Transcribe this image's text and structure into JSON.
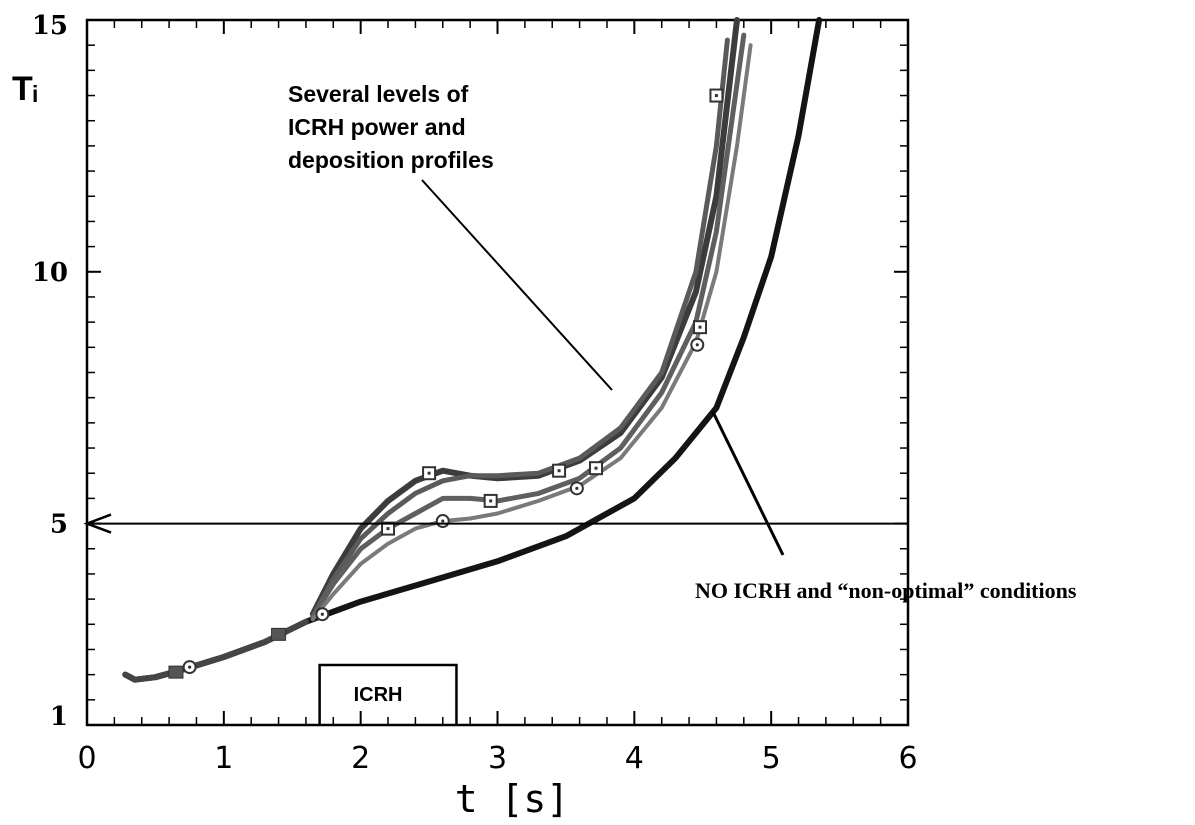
{
  "chart_data": {
    "type": "line",
    "xlabel": "t [s]",
    "ylabel": "Tᵢ",
    "xlim": [
      0,
      6
    ],
    "ylim": [
      1,
      15
    ],
    "x_ticks": [
      "0",
      "1",
      "2",
      "3",
      "4",
      "5",
      "6"
    ],
    "y_ticks": [
      {
        "label": "15",
        "value": 15
      },
      {
        "label": "10",
        "value": 10
      },
      {
        "label": "5",
        "value": 5
      },
      {
        "label": "1",
        "value": 1
      }
    ],
    "grid": false,
    "series": [
      {
        "color": "#141414",
        "width": 6,
        "marker": "none",
        "points": [
          [
            0.28,
            2.0
          ],
          [
            0.35,
            1.9
          ],
          [
            0.5,
            1.95
          ],
          [
            0.7,
            2.1
          ],
          [
            1.0,
            2.35
          ],
          [
            1.3,
            2.65
          ],
          [
            1.6,
            3.05
          ],
          [
            1.75,
            3.2
          ],
          [
            2.0,
            3.45
          ],
          [
            2.5,
            3.85
          ],
          [
            3.0,
            4.25
          ],
          [
            3.5,
            4.75
          ],
          [
            4.0,
            5.5
          ],
          [
            4.3,
            6.3
          ],
          [
            4.6,
            7.3
          ],
          [
            4.8,
            8.7
          ],
          [
            5.0,
            10.3
          ],
          [
            5.2,
            12.7
          ],
          [
            5.35,
            15.0
          ]
        ]
      },
      {
        "color": "#3c3c3c",
        "width": 6,
        "marker": "none",
        "points": [
          [
            1.65,
            3.2
          ],
          [
            1.8,
            4.0
          ],
          [
            2.0,
            4.9
          ],
          [
            2.2,
            5.45
          ],
          [
            2.4,
            5.85
          ],
          [
            2.6,
            6.05
          ],
          [
            2.8,
            5.95
          ],
          [
            3.0,
            5.9
          ],
          [
            3.3,
            5.95
          ],
          [
            3.6,
            6.25
          ],
          [
            3.9,
            6.8
          ],
          [
            4.2,
            7.9
          ],
          [
            4.45,
            9.6
          ],
          [
            4.6,
            11.5
          ],
          [
            4.75,
            15.0
          ]
        ]
      },
      {
        "color": "#5a5a5a",
        "width": 5,
        "marker": "square",
        "points": [
          [
            1.65,
            3.15
          ],
          [
            1.8,
            3.9
          ],
          [
            2.0,
            4.7
          ],
          [
            2.2,
            5.2
          ],
          [
            2.4,
            5.6
          ],
          [
            2.6,
            5.85
          ],
          [
            2.8,
            5.95
          ],
          [
            3.0,
            5.95
          ],
          [
            3.3,
            6.0
          ],
          [
            3.6,
            6.3
          ],
          [
            3.9,
            6.9
          ],
          [
            4.2,
            8.0
          ],
          [
            4.45,
            10.0
          ],
          [
            4.6,
            12.5
          ],
          [
            4.68,
            14.6
          ]
        ],
        "markers": [
          [
            2.5,
            6.0
          ],
          [
            3.45,
            6.05
          ],
          [
            4.6,
            13.5
          ]
        ]
      },
      {
        "color": "#5f5f5f",
        "width": 5,
        "marker": "square",
        "points": [
          [
            1.65,
            3.15
          ],
          [
            1.8,
            3.8
          ],
          [
            2.0,
            4.5
          ],
          [
            2.2,
            4.9
          ],
          [
            2.4,
            5.2
          ],
          [
            2.6,
            5.5
          ],
          [
            2.8,
            5.5
          ],
          [
            3.0,
            5.45
          ],
          [
            3.3,
            5.6
          ],
          [
            3.6,
            5.9
          ],
          [
            3.9,
            6.5
          ],
          [
            4.2,
            7.6
          ],
          [
            4.45,
            9.0
          ],
          [
            4.6,
            10.8
          ],
          [
            4.8,
            14.7
          ]
        ],
        "markers": [
          [
            2.2,
            4.9
          ],
          [
            2.95,
            5.45
          ],
          [
            3.72,
            6.1
          ],
          [
            4.48,
            8.9
          ]
        ]
      },
      {
        "color": "#7a7a7a",
        "width": 4,
        "marker": "circle",
        "points": [
          [
            1.65,
            3.1
          ],
          [
            1.8,
            3.6
          ],
          [
            2.0,
            4.2
          ],
          [
            2.2,
            4.6
          ],
          [
            2.4,
            4.9
          ],
          [
            2.6,
            5.05
          ],
          [
            2.8,
            5.1
          ],
          [
            3.0,
            5.2
          ],
          [
            3.3,
            5.45
          ],
          [
            3.6,
            5.75
          ],
          [
            3.9,
            6.3
          ],
          [
            4.2,
            7.3
          ],
          [
            4.45,
            8.6
          ],
          [
            4.6,
            10.0
          ],
          [
            4.75,
            12.5
          ],
          [
            4.85,
            14.5
          ]
        ],
        "markers": [
          [
            1.72,
            3.2
          ],
          [
            2.6,
            5.05
          ],
          [
            3.58,
            5.7
          ],
          [
            4.46,
            8.55
          ]
        ]
      },
      {
        "color": "#454545",
        "width": 6,
        "marker": "mixed",
        "points": [
          [
            0.28,
            2.0
          ],
          [
            0.35,
            1.9
          ],
          [
            0.5,
            1.95
          ],
          [
            0.7,
            2.1
          ],
          [
            1.0,
            2.35
          ],
          [
            1.3,
            2.65
          ],
          [
            1.6,
            3.05
          ]
        ],
        "markers": [
          [
            0.65,
            2.05
          ],
          [
            0.75,
            2.15
          ],
          [
            1.4,
            2.8
          ]
        ]
      }
    ],
    "reference_line": {
      "y": 5,
      "x_from": 6,
      "x_to": 0,
      "arrow": "left"
    },
    "annotations": [
      {
        "lines": [
          "Several levels of",
          "ICRH power and",
          "deposition profiles"
        ]
      },
      {
        "lines": [
          "NO ICRH and “non-optimal” conditions"
        ]
      }
    ],
    "icrh_window": {
      "label": "ICRH",
      "x_start": 1.7,
      "x_end": 2.7
    }
  }
}
